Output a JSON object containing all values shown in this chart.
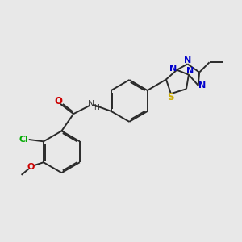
{
  "bg_color": "#e8e8e8",
  "bond_color": "#2a2a2a",
  "bond_width": 1.4,
  "dbo": 0.055,
  "N_color": "#0000cc",
  "S_color": "#ccaa00",
  "O_color": "#cc0000",
  "Cl_color": "#00aa00",
  "text_color": "#2a2a2a",
  "font_size": 8.0,
  "figsize": [
    3.0,
    3.0
  ],
  "dpi": 100,
  "xlim": [
    0,
    10
  ],
  "ylim": [
    0,
    10
  ]
}
